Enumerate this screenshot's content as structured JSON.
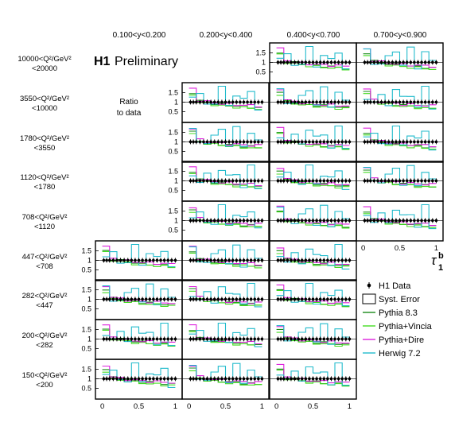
{
  "chart_data": {
    "type": "line",
    "experiment": "H1",
    "status": "Preliminary",
    "ratio_label": [
      "Ratio",
      "to data"
    ],
    "x_variable": "τ",
    "x_sup": "b",
    "x_sub": "1",
    "y_ticks": [
      "1.5",
      "1",
      "0.5"
    ],
    "x_ticks": [
      "0",
      "0.5",
      "1"
    ],
    "ylim": [
      0.1,
      1.85
    ],
    "xlim": [
      -0.05,
      1.05
    ],
    "y_bins": [
      {
        "label": "0.100<y<0.200"
      },
      {
        "label": "0.200<y<0.400"
      },
      {
        "label": "0.400<y<0.700"
      },
      {
        "label": "0.700<y<0.900"
      }
    ],
    "q2_bins": [
      {
        "line1": "10000<Q²/GeV²",
        "line2": "<20000",
        "panels": [
          2,
          3
        ]
      },
      {
        "line1": "3550<Q²/GeV²",
        "line2": "<10000",
        "panels": [
          1,
          2,
          3
        ]
      },
      {
        "line1": "1780<Q²/GeV²",
        "line2": "<3550",
        "panels": [
          1,
          2,
          3
        ]
      },
      {
        "line1": "1120<Q²/GeV²",
        "line2": "<1780",
        "panels": [
          1,
          2,
          3
        ]
      },
      {
        "line1": "708<Q²/GeV²",
        "line2": "<1120",
        "panels": [
          1,
          2,
          3
        ]
      },
      {
        "line1": "447<Q²/GeV²",
        "line2": "<708",
        "panels": [
          0,
          1,
          2
        ]
      },
      {
        "line1": "282<Q²/GeV²",
        "line2": "<447",
        "panels": [
          0,
          1,
          2
        ]
      },
      {
        "line1": "200<Q²/GeV²",
        "line2": "<282",
        "panels": [
          0,
          1,
          2
        ]
      },
      {
        "line1": "150<Q²/GeV²",
        "line2": "<200",
        "panels": [
          0,
          1,
          2
        ]
      }
    ],
    "legend": [
      {
        "name": "H1 Data",
        "kind": "marker",
        "color": "#000000"
      },
      {
        "name": "Syst. Error",
        "kind": "box",
        "color": "#000000"
      },
      {
        "name": "Pythia 8.3",
        "kind": "line",
        "color": "#1a8a1a"
      },
      {
        "name": "Pythia+Vincia",
        "kind": "line",
        "color": "#44dd22"
      },
      {
        "name": "Pythia+Dire",
        "kind": "line",
        "color": "#dd22dd"
      },
      {
        "name": "Herwig 7.2",
        "kind": "line",
        "color": "#22bbcc"
      }
    ],
    "data_points_x": [
      0.02,
      0.06,
      0.1,
      0.15,
      0.2,
      0.25,
      0.3,
      0.35,
      0.4,
      0.45,
      0.5,
      0.55,
      0.6,
      0.65,
      0.7,
      0.75,
      0.8,
      0.85,
      0.9,
      0.95,
      1.0
    ],
    "data_ratio": [
      1,
      1,
      1,
      1,
      1,
      1,
      1,
      1,
      1,
      1,
      1,
      1,
      1,
      1,
      1,
      1,
      1,
      1,
      1,
      1,
      1
    ],
    "model_bin_edges": [
      0,
      0.1,
      0.2,
      0.3,
      0.4,
      0.5,
      0.6,
      0.7,
      0.8,
      0.9,
      1.0
    ],
    "series": [
      {
        "name": "Pythia 8.3",
        "values": [
          1.5,
          1.05,
          0.98,
          0.92,
          0.87,
          0.83,
          0.8,
          0.77,
          0.74,
          0.7
        ]
      },
      {
        "name": "Pythia+Vincia",
        "values": [
          1.4,
          1.0,
          0.93,
          0.87,
          0.82,
          0.78,
          0.74,
          0.71,
          0.68,
          0.65
        ]
      },
      {
        "name": "Pythia+Dire",
        "values": [
          1.7,
          1.1,
          1.02,
          0.96,
          0.92,
          0.88,
          0.86,
          0.84,
          0.82,
          0.8
        ]
      },
      {
        "name": "Herwig 7.2",
        "values": [
          1.2,
          0.95,
          0.9,
          0.85,
          1.6,
          0.8,
          1.3,
          0.7,
          1.5,
          0.6
        ]
      }
    ]
  }
}
